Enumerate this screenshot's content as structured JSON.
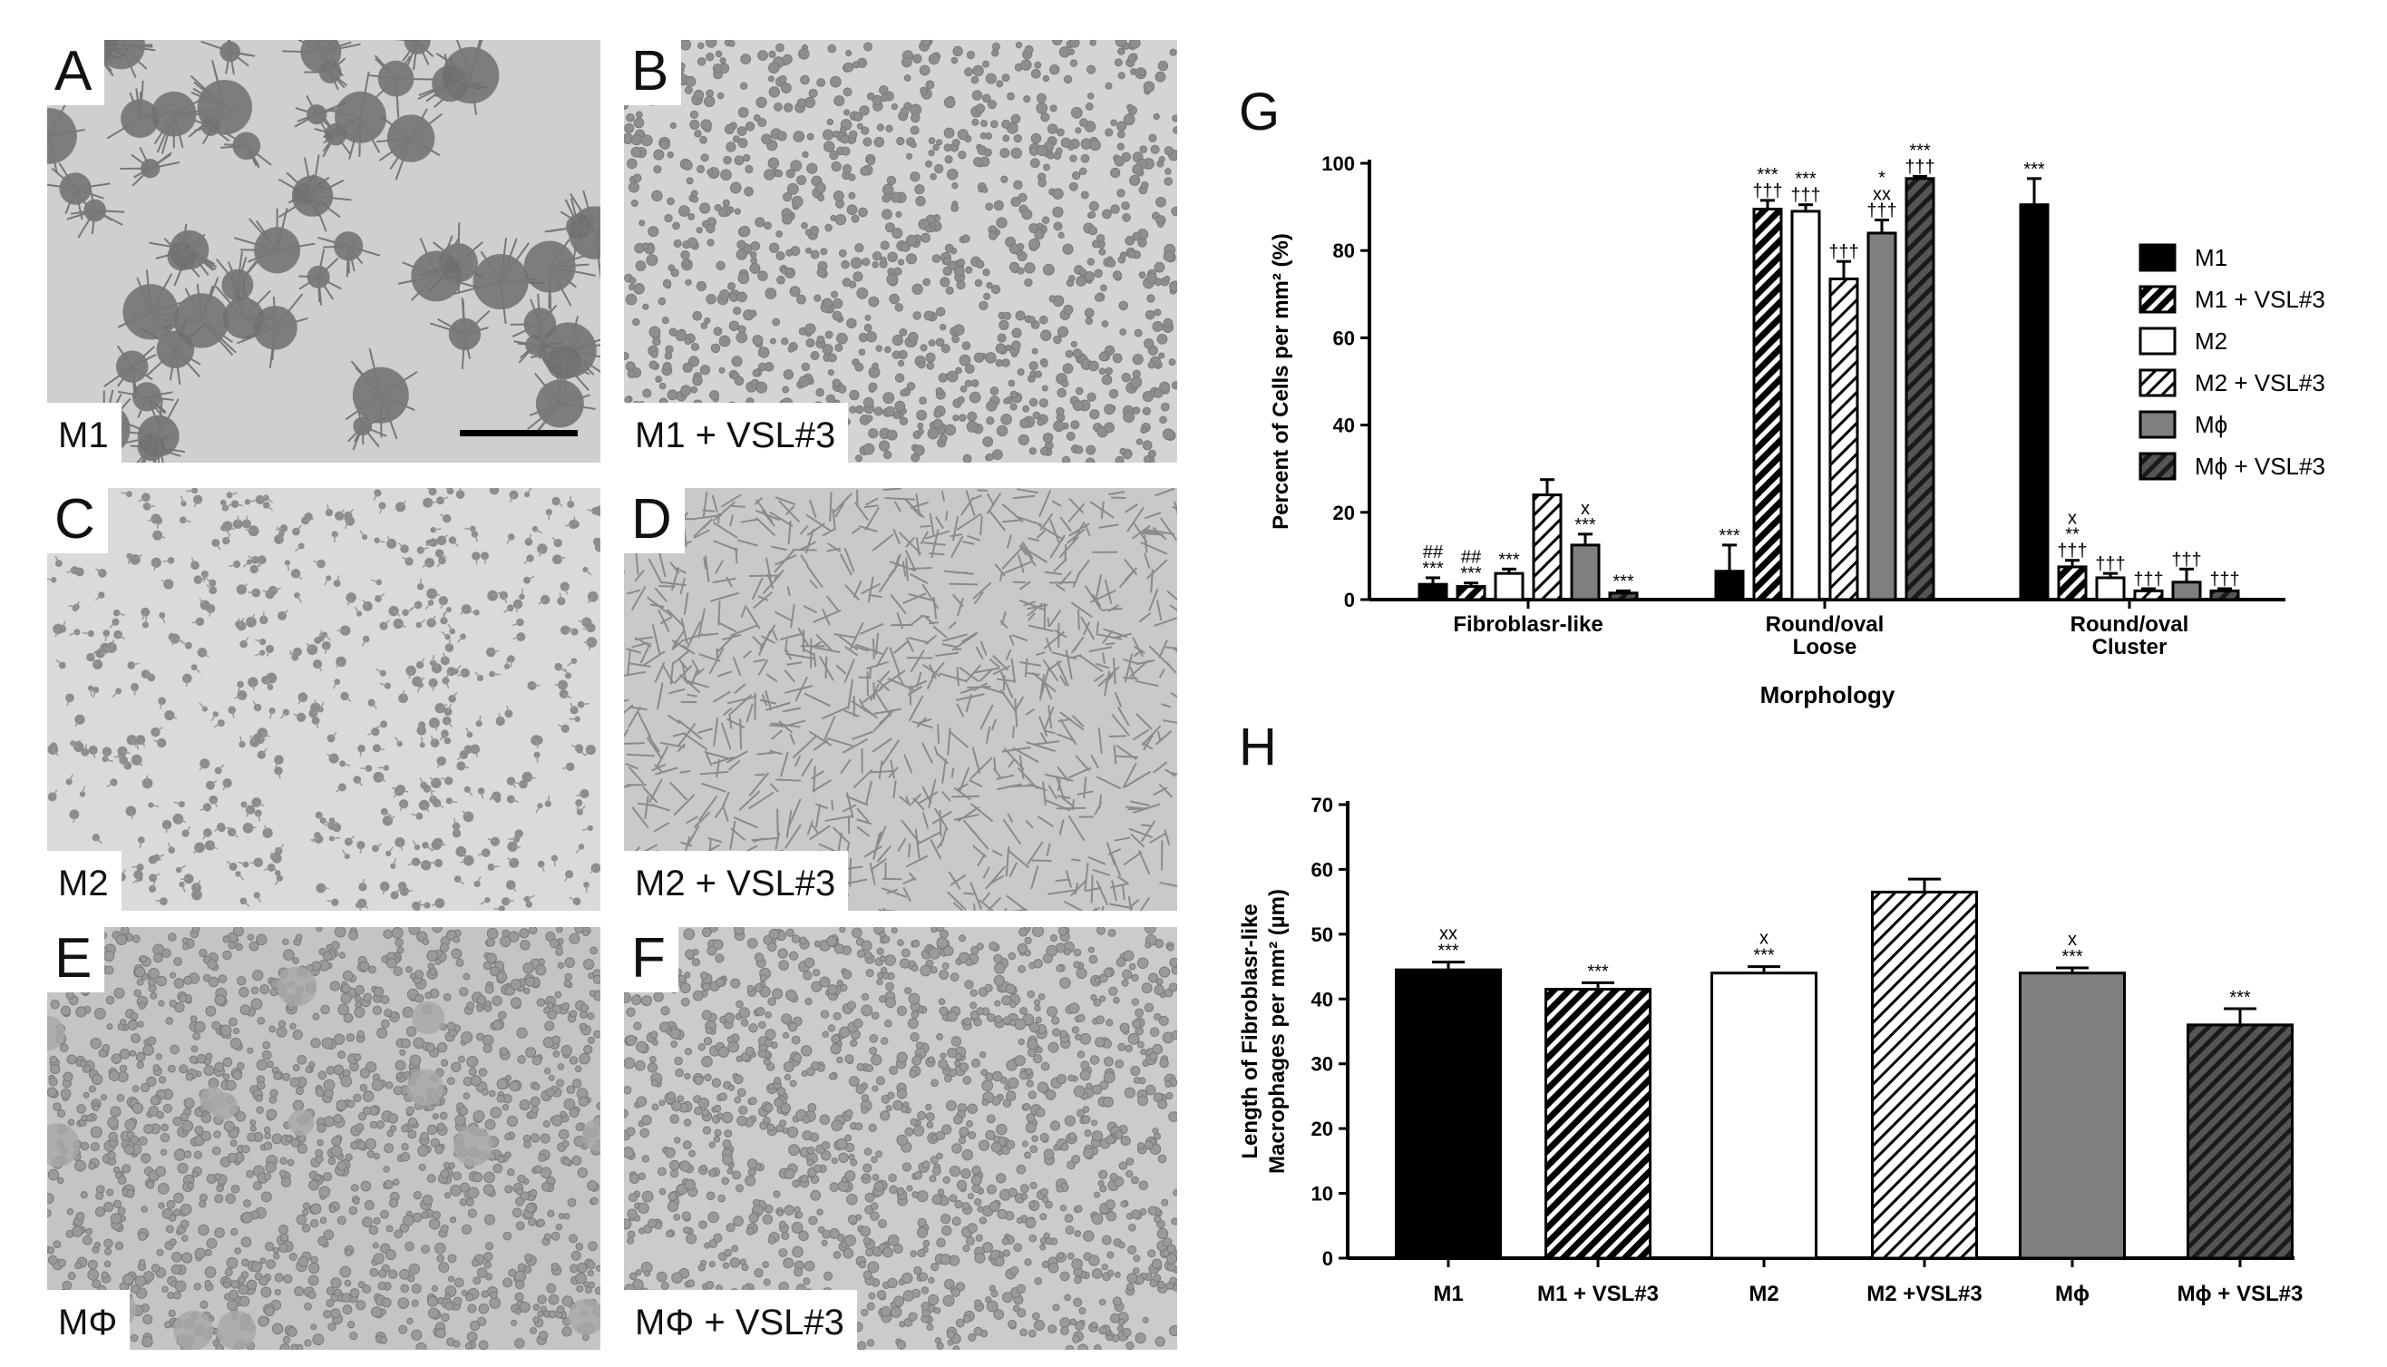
{
  "micrographs": [
    {
      "id": "A",
      "letter": "A",
      "caption": "M1",
      "tone": "#cfcfcf"
    },
    {
      "id": "B",
      "letter": "B",
      "caption": "M1 + VSL#3",
      "tone": "#d4d4d4"
    },
    {
      "id": "C",
      "letter": "C",
      "caption": "M2",
      "tone": "#dadada"
    },
    {
      "id": "D",
      "letter": "D",
      "caption": "M2 + VSL#3",
      "tone": "#c9c9c9"
    },
    {
      "id": "E",
      "letter": "E",
      "caption": "MΦ",
      "tone": "#c4c4c4"
    },
    {
      "id": "F",
      "letter": "F",
      "caption": "MΦ + VSL#3",
      "tone": "#cbcbcb"
    }
  ],
  "chart_data": [
    {
      "panel": "G",
      "type": "bar",
      "title": "",
      "xlabel": "Morphology",
      "ylabel": "Percent of Cells per mm² (%)",
      "ylim": [
        0,
        100
      ],
      "yticks": [
        0,
        20,
        40,
        60,
        80,
        100
      ],
      "categories": [
        "Fibroblasr-like",
        "Round/oval\nLoose",
        "Round/oval\nCluster"
      ],
      "legend_position": "right",
      "series": [
        {
          "name": "M1",
          "fill": "solid-black",
          "values": [
            3.5,
            6.5,
            90.5
          ],
          "errors": [
            1.5,
            6,
            6
          ],
          "annotations": [
            [
              "##",
              "***"
            ],
            [
              "***"
            ],
            [
              "***"
            ]
          ]
        },
        {
          "name": "M1 + VSL#3",
          "fill": "hatch-black",
          "values": [
            3,
            89.5,
            7.5
          ],
          "errors": [
            0.8,
            2,
            1.5
          ],
          "annotations": [
            [
              "##",
              "***"
            ],
            [
              "***",
              "†††"
            ],
            [
              "x",
              "**",
              "†††"
            ]
          ]
        },
        {
          "name": "M2",
          "fill": "white",
          "values": [
            6,
            89,
            5
          ],
          "errors": [
            1,
            1.5,
            1
          ],
          "annotations": [
            [
              "***"
            ],
            [
              "***",
              "†††"
            ],
            [
              "†††"
            ]
          ]
        },
        {
          "name": "M2 + VSL#3",
          "fill": "hatch-white",
          "values": [
            24,
            73.5,
            2
          ],
          "errors": [
            3.5,
            4,
            0.5
          ],
          "annotations": [
            [],
            [
              "†††"
            ],
            [
              "†††"
            ]
          ]
        },
        {
          "name": "Mϕ",
          "fill": "solid-gray",
          "values": [
            12.5,
            84,
            4
          ],
          "errors": [
            2.5,
            3,
            3
          ],
          "annotations": [
            [
              "x",
              "***"
            ],
            [
              "*",
              "xx",
              "†††"
            ],
            [
              "†††"
            ]
          ]
        },
        {
          "name": "Mϕ + VSL#3",
          "fill": "hatch-gray",
          "values": [
            1.5,
            96.5,
            2
          ],
          "errors": [
            0.5,
            0.5,
            0.5
          ],
          "annotations": [
            [
              "***"
            ],
            [
              "***",
              "†††"
            ],
            [
              "†††"
            ]
          ]
        }
      ]
    },
    {
      "panel": "H",
      "type": "bar",
      "title": "",
      "xlabel": "",
      "ylabel": "Length of Fibroblasr-like Macrophages per mm² (µm)",
      "ylabel_lines": [
        "Length of Fibroblasr-like",
        "Macrophages per mm² (µm)"
      ],
      "ylim": [
        0,
        70
      ],
      "yticks": [
        0,
        10,
        20,
        30,
        40,
        50,
        60,
        70
      ],
      "categories": [
        "M1",
        "M1 + VSL#3",
        "M2",
        "M2 +VSL#3",
        "Mϕ",
        "Mϕ + VSL#3"
      ],
      "series": [
        {
          "name": "Length",
          "fills": [
            "solid-black",
            "hatch-black",
            "white",
            "hatch-white",
            "solid-gray",
            "hatch-gray"
          ],
          "values": [
            44.5,
            41.5,
            44,
            56.5,
            44,
            36
          ],
          "errors": [
            1.2,
            1,
            1,
            2,
            0.8,
            2.5
          ],
          "annotations": [
            [
              "xx",
              "***"
            ],
            [
              "***"
            ],
            [
              "x",
              "***"
            ],
            [],
            [
              "x",
              "***"
            ],
            [
              "***"
            ]
          ]
        }
      ]
    }
  ],
  "colors": {
    "black": "#000000",
    "gray": "#808080",
    "white": "#ffffff"
  }
}
